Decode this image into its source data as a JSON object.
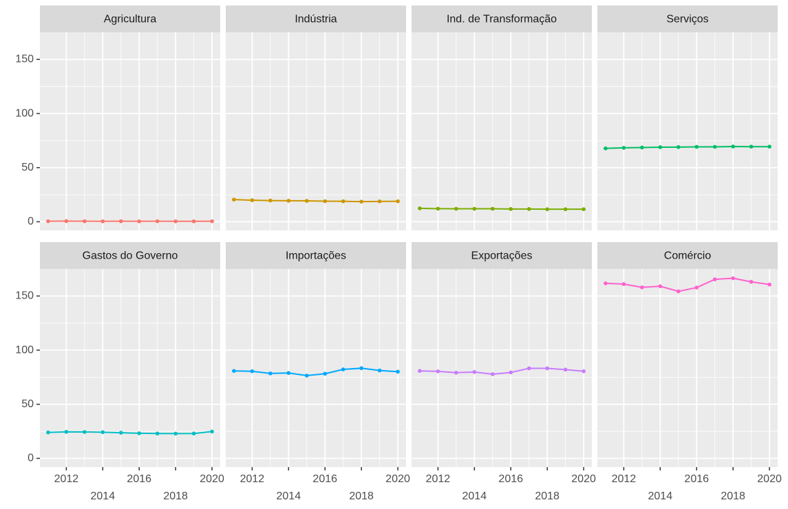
{
  "chart_data": [
    {
      "type": "line",
      "title": "Agricultura",
      "color": "#F8766D",
      "x": [
        2011,
        2012,
        2013,
        2014,
        2015,
        2016,
        2017,
        2018,
        2019,
        2020
      ],
      "values": [
        0.5,
        0.6,
        0.5,
        0.4,
        0.5,
        0.4,
        0.5,
        0.4,
        0.4,
        0.5
      ],
      "xlim": [
        2010.55,
        2020.45
      ],
      "ylim": [
        -8,
        175
      ],
      "xticks": [
        2012,
        2014,
        2016,
        2018,
        2020
      ],
      "yticks": [
        0,
        50,
        100,
        150
      ],
      "grid": true
    },
    {
      "type": "line",
      "title": "Indústria",
      "color": "#CD9600",
      "x": [
        2011,
        2012,
        2013,
        2014,
        2015,
        2016,
        2017,
        2018,
        2019,
        2020
      ],
      "values": [
        20.5,
        19.9,
        19.6,
        19.4,
        19.3,
        19.0,
        18.9,
        18.6,
        18.8,
        18.9
      ],
      "xlim": [
        2010.55,
        2020.45
      ],
      "ylim": [
        -8,
        175
      ],
      "xticks": [
        2012,
        2014,
        2016,
        2018,
        2020
      ],
      "yticks": [
        0,
        50,
        100,
        150
      ],
      "grid": true
    },
    {
      "type": "line",
      "title": "Ind. de Transformação",
      "color": "#7CAE00",
      "x": [
        2011,
        2012,
        2013,
        2014,
        2015,
        2016,
        2017,
        2018,
        2019,
        2020
      ],
      "values": [
        12.4,
        12.1,
        12.0,
        12.0,
        12.0,
        11.8,
        11.8,
        11.6,
        11.6,
        11.6
      ],
      "xlim": [
        2010.55,
        2020.45
      ],
      "ylim": [
        -8,
        175
      ],
      "xticks": [
        2012,
        2014,
        2016,
        2018,
        2020
      ],
      "yticks": [
        0,
        50,
        100,
        150
      ],
      "grid": true
    },
    {
      "type": "line",
      "title": "Serviços",
      "color": "#00BE67",
      "x": [
        2011,
        2012,
        2013,
        2014,
        2015,
        2016,
        2017,
        2018,
        2019,
        2020
      ],
      "values": [
        67.8,
        68.3,
        68.6,
        68.9,
        69.0,
        69.2,
        69.2,
        69.5,
        69.4,
        69.4
      ],
      "xlim": [
        2010.55,
        2020.45
      ],
      "ylim": [
        -8,
        175
      ],
      "xticks": [
        2012,
        2014,
        2016,
        2018,
        2020
      ],
      "yticks": [
        0,
        50,
        100,
        150
      ],
      "grid": true
    },
    {
      "type": "line",
      "title": "Gastos do Governo",
      "color": "#00BFC4",
      "x": [
        2011,
        2012,
        2013,
        2014,
        2015,
        2016,
        2017,
        2018,
        2019,
        2020
      ],
      "values": [
        24.0,
        24.5,
        24.4,
        24.2,
        23.7,
        23.2,
        23.0,
        22.9,
        23.0,
        24.8
      ],
      "xlim": [
        2010.55,
        2020.45
      ],
      "ylim": [
        -8,
        175
      ],
      "xticks": [
        2012,
        2014,
        2016,
        2018,
        2020
      ],
      "yticks": [
        0,
        50,
        100,
        150
      ],
      "grid": true
    },
    {
      "type": "line",
      "title": "Importações",
      "color": "#00A9FF",
      "x": [
        2011,
        2012,
        2013,
        2014,
        2015,
        2016,
        2017,
        2018,
        2019,
        2020
      ],
      "values": [
        80.8,
        80.5,
        78.5,
        78.9,
        76.5,
        78.2,
        82.2,
        83.3,
        81.2,
        80.1
      ],
      "xlim": [
        2010.55,
        2020.45
      ],
      "ylim": [
        -8,
        175
      ],
      "xticks": [
        2012,
        2014,
        2016,
        2018,
        2020
      ],
      "yticks": [
        0,
        50,
        100,
        150
      ],
      "grid": true
    },
    {
      "type": "line",
      "title": "Exportações",
      "color": "#C77CFF",
      "x": [
        2011,
        2012,
        2013,
        2014,
        2015,
        2016,
        2017,
        2018,
        2019,
        2020
      ],
      "values": [
        80.8,
        80.4,
        79.2,
        79.8,
        77.8,
        79.4,
        83.2,
        83.2,
        82.0,
        80.5
      ],
      "xlim": [
        2010.55,
        2020.45
      ],
      "ylim": [
        -8,
        175
      ],
      "xticks": [
        2012,
        2014,
        2016,
        2018,
        2020
      ],
      "yticks": [
        0,
        50,
        100,
        150
      ],
      "grid": true
    },
    {
      "type": "line",
      "title": "Comércio",
      "color": "#FF61CC",
      "x": [
        2011,
        2012,
        2013,
        2014,
        2015,
        2016,
        2017,
        2018,
        2019,
        2020
      ],
      "values": [
        161.7,
        161.0,
        158.0,
        159.0,
        154.3,
        157.8,
        165.4,
        166.4,
        163.1,
        160.6
      ],
      "xlim": [
        2010.55,
        2020.45
      ],
      "ylim": [
        -8,
        175
      ],
      "xticks": [
        2012,
        2014,
        2016,
        2018,
        2020
      ],
      "yticks": [
        0,
        50,
        100,
        150
      ],
      "grid": true
    }
  ]
}
